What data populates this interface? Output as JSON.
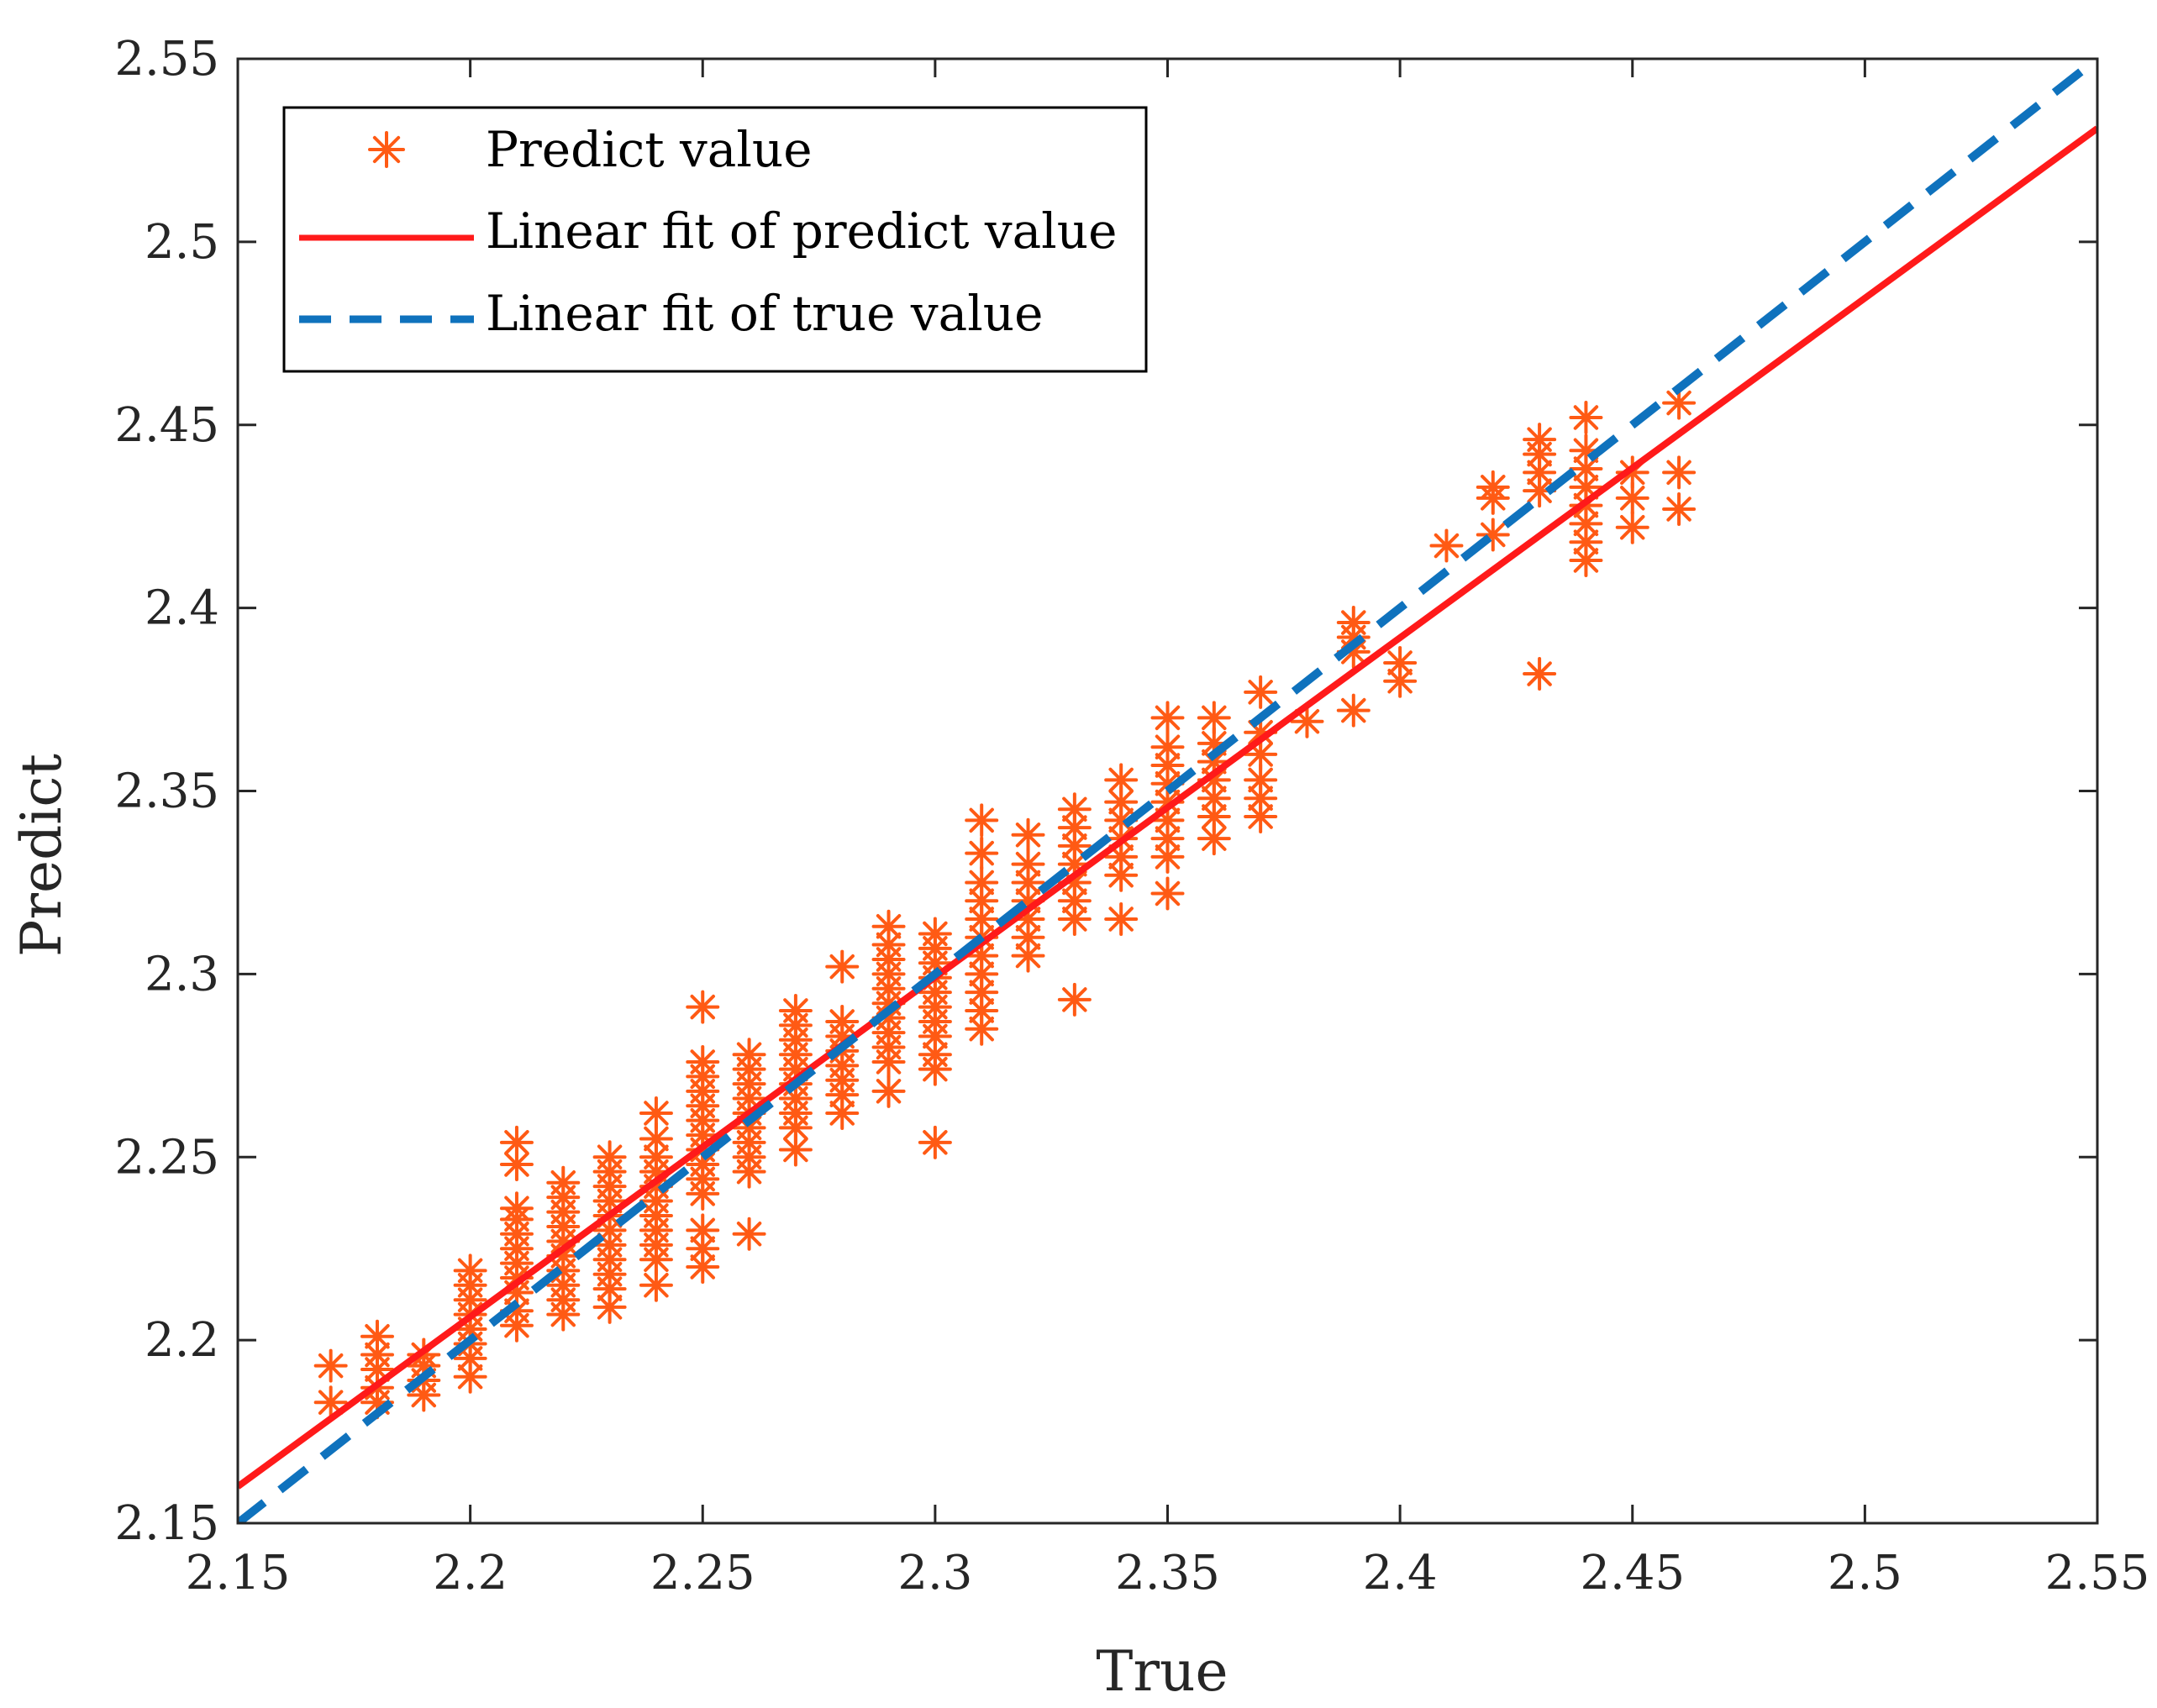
{
  "chart_data": {
    "type": "scatter",
    "title": "",
    "xlabel": "True",
    "ylabel": "Predict",
    "xlim": [
      2.15,
      2.55
    ],
    "ylim": [
      2.15,
      2.55
    ],
    "xticks": [
      "2.15",
      "2.2",
      "2.25",
      "2.3",
      "2.35",
      "2.4",
      "2.45",
      "2.5",
      "2.55"
    ],
    "yticks": [
      "2.15",
      "2.2",
      "2.25",
      "2.3",
      "2.35",
      "2.4",
      "2.45",
      "2.5",
      "2.55"
    ],
    "grid": false,
    "legend_position": "top-left",
    "colors": {
      "scatter": "#ff5a14",
      "pred_fit": "#ff1a1a",
      "true_fit": "#0f72bd",
      "axis": "#262626"
    },
    "legend": [
      "Predict value",
      "Linear fit of predict value",
      "Linear fit of true value"
    ],
    "series": [
      {
        "name": "Predict value",
        "marker": "asterisk",
        "points": [
          [
            2.17,
            2.183
          ],
          [
            2.17,
            2.193
          ],
          [
            2.18,
            2.183
          ],
          [
            2.18,
            2.187
          ],
          [
            2.18,
            2.192
          ],
          [
            2.18,
            2.196
          ],
          [
            2.18,
            2.201
          ],
          [
            2.19,
            2.185
          ],
          [
            2.19,
            2.189
          ],
          [
            2.19,
            2.193
          ],
          [
            2.19,
            2.196
          ],
          [
            2.2,
            2.19
          ],
          [
            2.2,
            2.195
          ],
          [
            2.2,
            2.199
          ],
          [
            2.2,
            2.203
          ],
          [
            2.2,
            2.207
          ],
          [
            2.2,
            2.211
          ],
          [
            2.2,
            2.215
          ],
          [
            2.2,
            2.219
          ],
          [
            2.21,
            2.204
          ],
          [
            2.21,
            2.208
          ],
          [
            2.21,
            2.213
          ],
          [
            2.21,
            2.217
          ],
          [
            2.21,
            2.221
          ],
          [
            2.21,
            2.225
          ],
          [
            2.21,
            2.229
          ],
          [
            2.21,
            2.233
          ],
          [
            2.21,
            2.236
          ],
          [
            2.21,
            2.248
          ],
          [
            2.21,
            2.254
          ],
          [
            2.22,
            2.207
          ],
          [
            2.22,
            2.211
          ],
          [
            2.22,
            2.215
          ],
          [
            2.22,
            2.219
          ],
          [
            2.22,
            2.223
          ],
          [
            2.22,
            2.227
          ],
          [
            2.22,
            2.231
          ],
          [
            2.22,
            2.235
          ],
          [
            2.22,
            2.239
          ],
          [
            2.22,
            2.243
          ],
          [
            2.23,
            2.209
          ],
          [
            2.23,
            2.214
          ],
          [
            2.23,
            2.218
          ],
          [
            2.23,
            2.222
          ],
          [
            2.23,
            2.226
          ],
          [
            2.23,
            2.23
          ],
          [
            2.23,
            2.234
          ],
          [
            2.23,
            2.238
          ],
          [
            2.23,
            2.242
          ],
          [
            2.23,
            2.246
          ],
          [
            2.23,
            2.25
          ],
          [
            2.24,
            2.215
          ],
          [
            2.24,
            2.222
          ],
          [
            2.24,
            2.226
          ],
          [
            2.24,
            2.23
          ],
          [
            2.24,
            2.234
          ],
          [
            2.24,
            2.238
          ],
          [
            2.24,
            2.242
          ],
          [
            2.24,
            2.246
          ],
          [
            2.24,
            2.25
          ],
          [
            2.24,
            2.255
          ],
          [
            2.24,
            2.262
          ],
          [
            2.25,
            2.22
          ],
          [
            2.25,
            2.225
          ],
          [
            2.25,
            2.23
          ],
          [
            2.25,
            2.24
          ],
          [
            2.25,
            2.244
          ],
          [
            2.25,
            2.248
          ],
          [
            2.25,
            2.252
          ],
          [
            2.25,
            2.256
          ],
          [
            2.25,
            2.26
          ],
          [
            2.25,
            2.264
          ],
          [
            2.25,
            2.268
          ],
          [
            2.25,
            2.272
          ],
          [
            2.25,
            2.276
          ],
          [
            2.25,
            2.291
          ],
          [
            2.26,
            2.229
          ],
          [
            2.26,
            2.246
          ],
          [
            2.26,
            2.25
          ],
          [
            2.26,
            2.254
          ],
          [
            2.26,
            2.258
          ],
          [
            2.26,
            2.262
          ],
          [
            2.26,
            2.266
          ],
          [
            2.26,
            2.27
          ],
          [
            2.26,
            2.274
          ],
          [
            2.26,
            2.278
          ],
          [
            2.27,
            2.252
          ],
          [
            2.27,
            2.258
          ],
          [
            2.27,
            2.262
          ],
          [
            2.27,
            2.266
          ],
          [
            2.27,
            2.27
          ],
          [
            2.27,
            2.274
          ],
          [
            2.27,
            2.278
          ],
          [
            2.27,
            2.282
          ],
          [
            2.27,
            2.286
          ],
          [
            2.27,
            2.29
          ],
          [
            2.28,
            2.262
          ],
          [
            2.28,
            2.267
          ],
          [
            2.28,
            2.271
          ],
          [
            2.28,
            2.275
          ],
          [
            2.28,
            2.279
          ],
          [
            2.28,
            2.283
          ],
          [
            2.28,
            2.287
          ],
          [
            2.28,
            2.302
          ],
          [
            2.29,
            2.268
          ],
          [
            2.29,
            2.276
          ],
          [
            2.29,
            2.28
          ],
          [
            2.29,
            2.284
          ],
          [
            2.29,
            2.288
          ],
          [
            2.29,
            2.292
          ],
          [
            2.29,
            2.296
          ],
          [
            2.29,
            2.3
          ],
          [
            2.29,
            2.304
          ],
          [
            2.29,
            2.308
          ],
          [
            2.29,
            2.313
          ],
          [
            2.3,
            2.254
          ],
          [
            2.3,
            2.274
          ],
          [
            2.3,
            2.278
          ],
          [
            2.3,
            2.283
          ],
          [
            2.3,
            2.287
          ],
          [
            2.3,
            2.291
          ],
          [
            2.3,
            2.295
          ],
          [
            2.3,
            2.299
          ],
          [
            2.3,
            2.303
          ],
          [
            2.3,
            2.307
          ],
          [
            2.3,
            2.311
          ],
          [
            2.31,
            2.285
          ],
          [
            2.31,
            2.29
          ],
          [
            2.31,
            2.295
          ],
          [
            2.31,
            2.3
          ],
          [
            2.31,
            2.305
          ],
          [
            2.31,
            2.31
          ],
          [
            2.31,
            2.315
          ],
          [
            2.31,
            2.32
          ],
          [
            2.31,
            2.325
          ],
          [
            2.31,
            2.333
          ],
          [
            2.31,
            2.342
          ],
          [
            2.32,
            2.305
          ],
          [
            2.32,
            2.31
          ],
          [
            2.32,
            2.315
          ],
          [
            2.32,
            2.32
          ],
          [
            2.32,
            2.325
          ],
          [
            2.32,
            2.33
          ],
          [
            2.32,
            2.338
          ],
          [
            2.33,
            2.293
          ],
          [
            2.33,
            2.315
          ],
          [
            2.33,
            2.32
          ],
          [
            2.33,
            2.325
          ],
          [
            2.33,
            2.33
          ],
          [
            2.33,
            2.335
          ],
          [
            2.33,
            2.34
          ],
          [
            2.33,
            2.345
          ],
          [
            2.34,
            2.315
          ],
          [
            2.34,
            2.327
          ],
          [
            2.34,
            2.332
          ],
          [
            2.34,
            2.337
          ],
          [
            2.34,
            2.342
          ],
          [
            2.34,
            2.347
          ],
          [
            2.34,
            2.353
          ],
          [
            2.35,
            2.322
          ],
          [
            2.35,
            2.332
          ],
          [
            2.35,
            2.337
          ],
          [
            2.35,
            2.342
          ],
          [
            2.35,
            2.347
          ],
          [
            2.35,
            2.352
          ],
          [
            2.35,
            2.357
          ],
          [
            2.35,
            2.362
          ],
          [
            2.35,
            2.37
          ],
          [
            2.36,
            2.337
          ],
          [
            2.36,
            2.343
          ],
          [
            2.36,
            2.348
          ],
          [
            2.36,
            2.353
          ],
          [
            2.36,
            2.358
          ],
          [
            2.36,
            2.363
          ],
          [
            2.36,
            2.37
          ],
          [
            2.37,
            2.343
          ],
          [
            2.37,
            2.348
          ],
          [
            2.37,
            2.353
          ],
          [
            2.37,
            2.36
          ],
          [
            2.37,
            2.366
          ],
          [
            2.37,
            2.377
          ],
          [
            2.38,
            2.369
          ],
          [
            2.39,
            2.372
          ],
          [
            2.39,
            2.388
          ],
          [
            2.39,
            2.392
          ],
          [
            2.39,
            2.396
          ],
          [
            2.4,
            2.38
          ],
          [
            2.4,
            2.385
          ],
          [
            2.41,
            2.417
          ],
          [
            2.42,
            2.42
          ],
          [
            2.42,
            2.43
          ],
          [
            2.42,
            2.433
          ],
          [
            2.43,
            2.382
          ],
          [
            2.43,
            2.432
          ],
          [
            2.43,
            2.437
          ],
          [
            2.43,
            2.442
          ],
          [
            2.43,
            2.446
          ],
          [
            2.44,
            2.413
          ],
          [
            2.44,
            2.418
          ],
          [
            2.44,
            2.423
          ],
          [
            2.44,
            2.428
          ],
          [
            2.44,
            2.433
          ],
          [
            2.44,
            2.438
          ],
          [
            2.44,
            2.443
          ],
          [
            2.44,
            2.452
          ],
          [
            2.45,
            2.422
          ],
          [
            2.45,
            2.43
          ],
          [
            2.45,
            2.437
          ],
          [
            2.46,
            2.427
          ],
          [
            2.46,
            2.437
          ],
          [
            2.46,
            2.456
          ]
        ]
      },
      {
        "name": "Linear fit of predict value",
        "line_style": "solid",
        "x": [
          2.15,
          2.55
        ],
        "y": [
          2.16,
          2.531
        ]
      },
      {
        "name": "Linear fit of true value",
        "line_style": "dashed",
        "x": [
          2.15,
          2.55
        ],
        "y": [
          2.15,
          2.55
        ]
      }
    ]
  }
}
